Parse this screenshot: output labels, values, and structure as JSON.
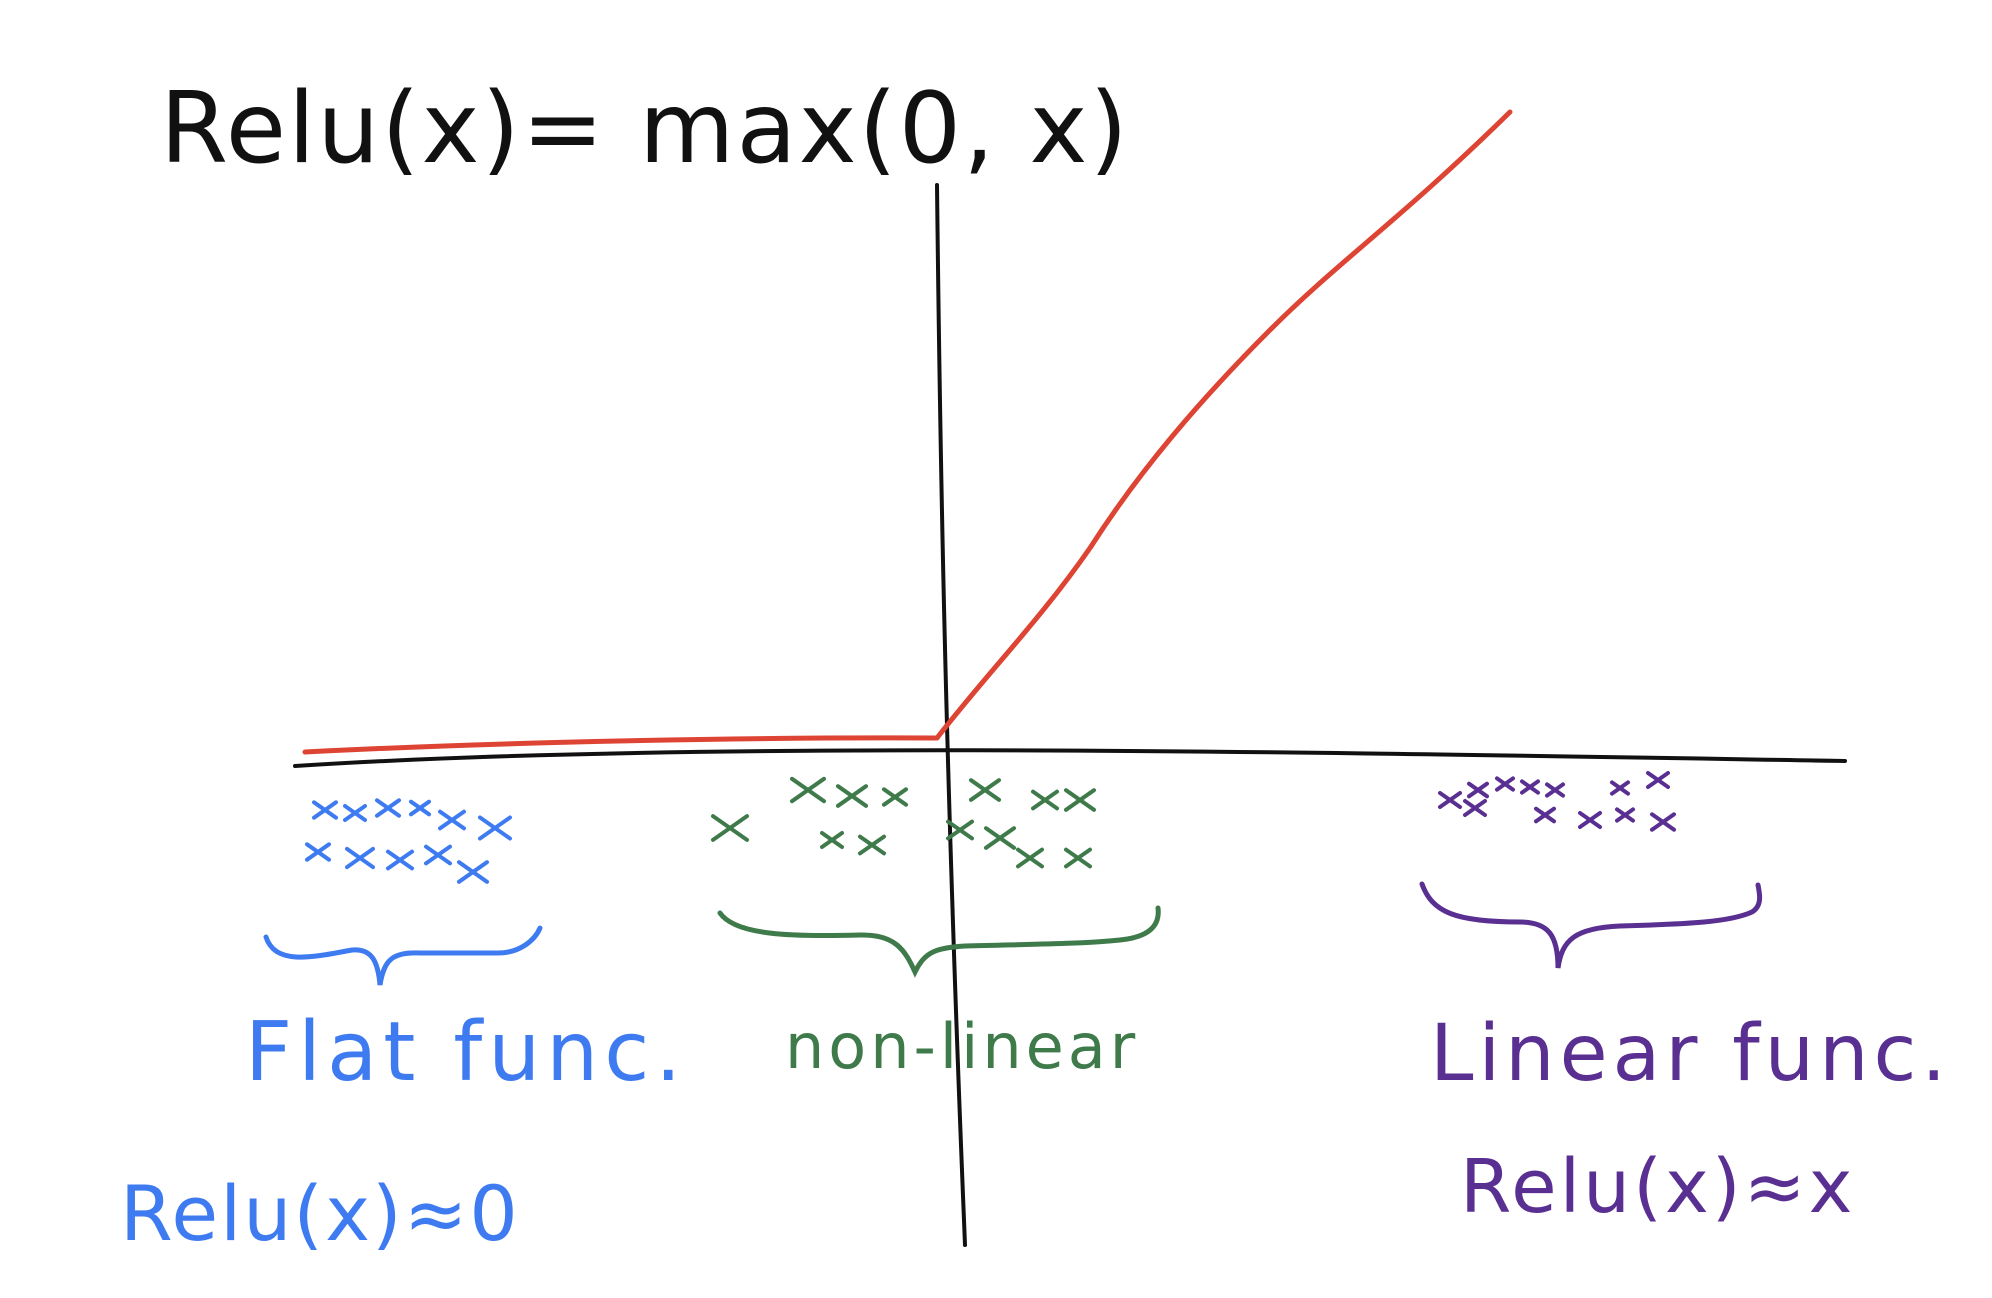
{
  "title": "Relu(x)= max(0, x)",
  "colors": {
    "ink": "#111111",
    "relu": "#de4433",
    "flat": "#3f7bf0",
    "nonlinear": "#3f7a4b",
    "linear": "#5a2f92"
  },
  "regions": [
    {
      "label": "Flat func.",
      "formula": "Relu(x)≈0",
      "marker": "x",
      "color_key": "flat"
    },
    {
      "label": "non-linear",
      "formula": "",
      "marker": "x",
      "color_key": "nonlinear"
    },
    {
      "label": "Linear func.",
      "formula": "Relu(x)≈x",
      "marker": "x",
      "color_key": "linear"
    }
  ]
}
